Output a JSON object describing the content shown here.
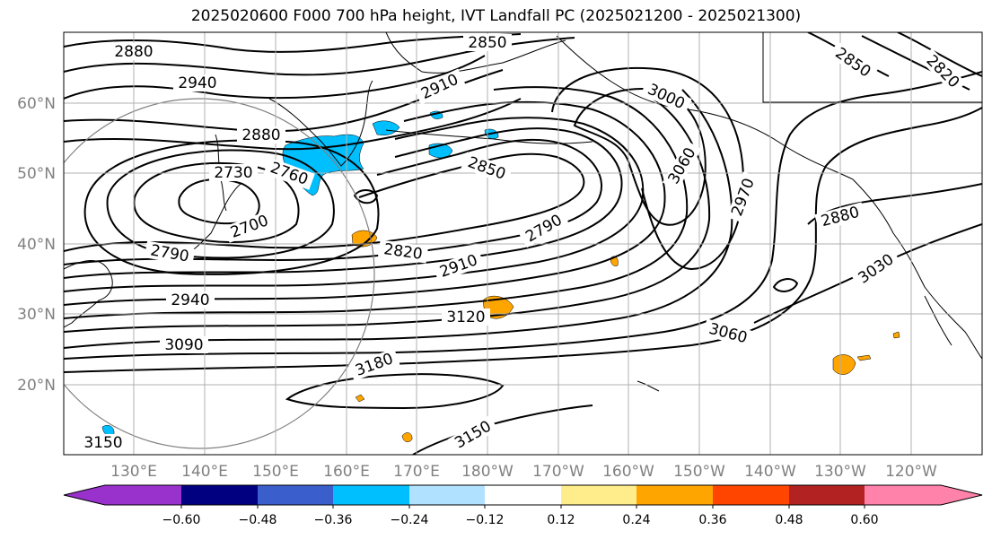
{
  "title": "2025020600 F000 700 hPa height, IVT Landfall PC (2025021200 - 2025021300)",
  "map": {
    "lat_labels": [
      "60°N",
      "50°N",
      "40°N",
      "30°N",
      "20°N"
    ],
    "lon_labels": [
      "130°E",
      "140°E",
      "150°E",
      "160°E",
      "170°E",
      "180°W",
      "170°W",
      "160°W",
      "150°W",
      "140°W",
      "130°W",
      "120°W"
    ],
    "contour_labels": [
      "2880",
      "2940",
      "2850",
      "2910",
      "3000",
      "2850",
      "2820",
      "2880",
      "2730",
      "2760",
      "2850",
      "3060",
      "2700",
      "2970",
      "2880",
      "2790",
      "2790",
      "2820",
      "2910",
      "3030",
      "2940",
      "3120",
      "3090",
      "3060",
      "3180",
      "3150",
      "3150"
    ]
  },
  "colorbar": {
    "ticks": [
      "−0.60",
      "−0.48",
      "−0.36",
      "−0.24",
      "−0.12",
      "0.12",
      "0.24",
      "0.36",
      "0.48",
      "0.60"
    ],
    "colors": [
      "#9932cc",
      "#000080",
      "#3a5fcd",
      "#00bfff",
      "#b0e2ff",
      "#ffffff",
      "#ffec8b",
      "#ffa500",
      "#ff4500",
      "#b22222",
      "#ff82ab"
    ]
  }
}
